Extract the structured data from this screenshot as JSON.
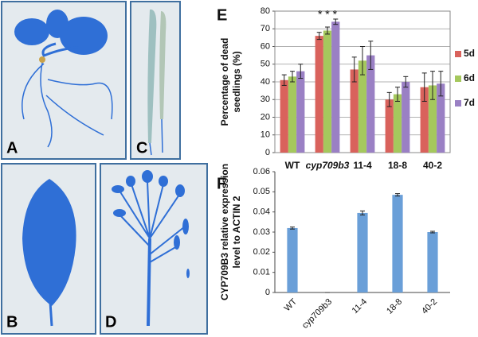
{
  "panels": {
    "A": "A",
    "B": "B",
    "C": "C",
    "D": "D"
  },
  "chart_data": [
    {
      "type": "bar",
      "label": "E",
      "ylabel": [
        "Percentage of dead",
        "seedlings (%)"
      ],
      "annotation": "* * *",
      "categories": [
        "WT",
        "cyp709b3",
        "11-4",
        "18-8",
        "40-2"
      ],
      "series": [
        {
          "name": "5d",
          "color": "#d9625c",
          "values": [
            41,
            66,
            47,
            30,
            37
          ],
          "errors": [
            3,
            2,
            7,
            4,
            8
          ]
        },
        {
          "name": "6d",
          "color": "#a5c85d",
          "values": [
            43,
            69,
            52,
            33,
            38
          ],
          "errors": [
            3,
            2,
            8,
            4,
            8
          ]
        },
        {
          "name": "7d",
          "color": "#9a80c4",
          "values": [
            46,
            74,
            55,
            40,
            39
          ],
          "errors": [
            4,
            1.5,
            8,
            3,
            7
          ]
        }
      ],
      "ylim": [
        0,
        80
      ],
      "yticks": [
        0,
        10,
        20,
        30,
        40,
        50,
        60,
        70,
        80
      ],
      "grid": true,
      "legend": "right"
    },
    {
      "type": "bar",
      "label": "F",
      "ylabel": [
        "CYP709B3 relative expression",
        "level to ACTIN 2"
      ],
      "categories": [
        "WT",
        "cyp709b3",
        "11-4",
        "18-8",
        "40-2"
      ],
      "values": [
        0.032,
        0,
        0.0395,
        0.0485,
        0.03
      ],
      "errors": [
        0.0005,
        0,
        0.001,
        0.0006,
        0.0004
      ],
      "color": "#6a9fd8",
      "ylim": [
        0,
        0.06
      ],
      "yticks": [
        0,
        0.01,
        0.02,
        0.03,
        0.04,
        0.05,
        0.06
      ],
      "grid": false,
      "xlabel_rotation": -45
    }
  ]
}
